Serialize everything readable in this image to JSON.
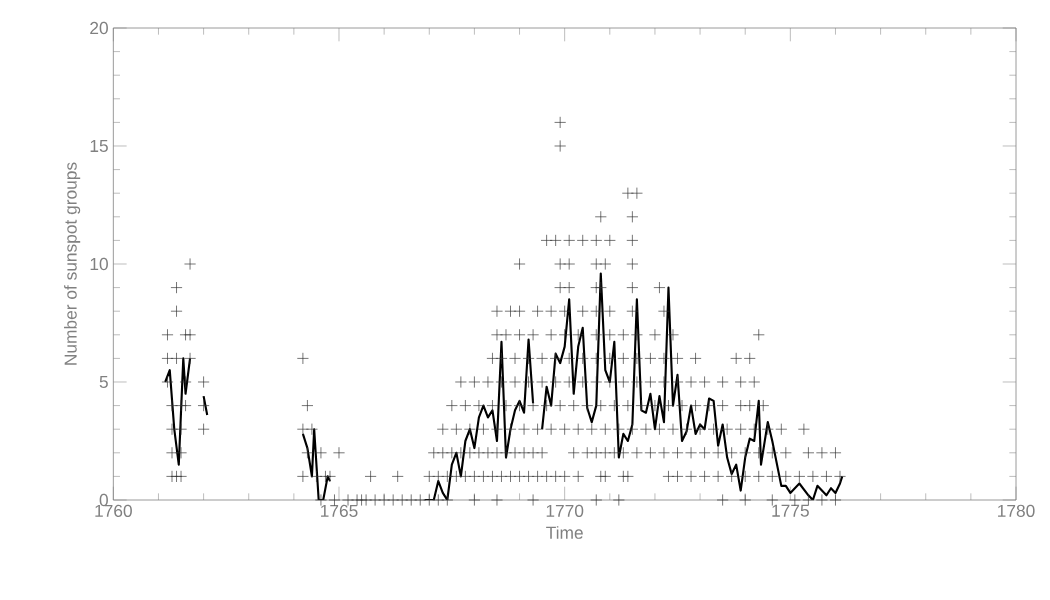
{
  "chart_data": {
    "type": "scatter",
    "xlabel": "Time",
    "ylabel": "Number of sunspot groups",
    "xlim": [
      1760,
      1780
    ],
    "ylim": [
      0,
      20
    ],
    "xticks": [
      1760,
      1765,
      1770,
      1775,
      1780
    ],
    "yticks": [
      0,
      5,
      10,
      15,
      20
    ],
    "grid": false,
    "series": [
      {
        "marker": "cross",
        "color": "#303030",
        "x": [
          1761.2,
          1761.2,
          1761.2,
          1761.3,
          1761.3,
          1761.3,
          1761.3,
          1761.4,
          1761.4,
          1761.4,
          1761.4,
          1761.5,
          1761.5,
          1761.5,
          1761.5,
          1761.6,
          1761.6,
          1761.6,
          1761.7,
          1761.7,
          1761.7,
          1762.0,
          1762.0,
          1762.0,
          1764.2,
          1764.3,
          1764.2,
          1764.3,
          1764.2,
          1764.4,
          1764.5,
          1764.6,
          1764.7,
          1764.8,
          1765.0,
          1764.6,
          1764.9,
          1765.2,
          1765.4,
          1765.5,
          1765.6,
          1765.8,
          1766.0,
          1766.2,
          1766.4,
          1766.6,
          1766.8,
          1767.0,
          1767.2,
          1767.4,
          1768.0,
          1768.5,
          1769.3,
          1770.7,
          1771.2,
          1773.5,
          1774.0,
          1774.6,
          1775.1,
          1775.4,
          1775.7,
          1776.0,
          1765.7,
          1766.3,
          1767.0,
          1767.2,
          1767.4,
          1767.6,
          1767.8,
          1768.0,
          1768.2,
          1768.4,
          1768.6,
          1768.8,
          1769.0,
          1769.2,
          1769.4,
          1769.6,
          1769.8,
          1770.0,
          1770.3,
          1770.8,
          1770.9,
          1771.3,
          1771.4,
          1772.3,
          1772.5,
          1772.8,
          1773.1,
          1773.4,
          1773.7,
          1774.0,
          1774.3,
          1774.6,
          1774.9,
          1775.2,
          1775.5,
          1775.8,
          1776.1,
          1767.1,
          1767.3,
          1767.5,
          1767.7,
          1767.9,
          1768.1,
          1768.3,
          1768.5,
          1768.7,
          1768.9,
          1769.1,
          1769.3,
          1769.5,
          1770.2,
          1770.5,
          1770.7,
          1770.9,
          1771.1,
          1771.3,
          1771.6,
          1771.9,
          1772.2,
          1772.5,
          1772.8,
          1773.1,
          1773.4,
          1773.7,
          1774.0,
          1774.3,
          1774.6,
          1774.9,
          1775.4,
          1775.7,
          1776.0,
          1767.3,
          1767.6,
          1767.9,
          1768.2,
          1768.5,
          1768.8,
          1769.1,
          1769.4,
          1769.7,
          1770.0,
          1770.3,
          1770.6,
          1770.9,
          1771.2,
          1771.5,
          1771.8,
          1772.1,
          1772.4,
          1772.7,
          1773.0,
          1773.3,
          1773.6,
          1773.9,
          1774.2,
          1774.5,
          1774.8,
          1775.3,
          1767.5,
          1767.8,
          1768.1,
          1768.4,
          1768.7,
          1769.0,
          1769.3,
          1769.6,
          1769.9,
          1770.2,
          1770.5,
          1770.8,
          1771.1,
          1771.4,
          1771.7,
          1772.0,
          1772.3,
          1772.6,
          1772.9,
          1773.2,
          1773.5,
          1773.9,
          1774.1,
          1774.4,
          1767.7,
          1768.0,
          1768.3,
          1768.6,
          1768.9,
          1769.2,
          1769.5,
          1769.8,
          1770.1,
          1770.4,
          1770.7,
          1771.0,
          1771.3,
          1771.6,
          1771.9,
          1772.2,
          1772.5,
          1772.8,
          1773.1,
          1773.5,
          1773.9,
          1774.2,
          1768.4,
          1768.6,
          1768.9,
          1769.2,
          1769.5,
          1769.8,
          1770.1,
          1770.4,
          1770.7,
          1771.0,
          1771.3,
          1771.6,
          1771.9,
          1772.2,
          1772.5,
          1772.9,
          1773.8,
          1774.1,
          1768.5,
          1768.7,
          1769.0,
          1769.3,
          1769.7,
          1770.0,
          1770.3,
          1770.7,
          1771.0,
          1771.3,
          1771.6,
          1772.0,
          1772.4,
          1774.3,
          1768.5,
          1768.8,
          1769.0,
          1769.4,
          1769.7,
          1770.0,
          1770.4,
          1770.7,
          1771.0,
          1771.5,
          1772.2,
          1769.9,
          1770.1,
          1770.7,
          1770.8,
          1771.5,
          1772.1,
          1769.0,
          1769.9,
          1770.1,
          1770.7,
          1770.9,
          1771.5,
          1769.6,
          1769.8,
          1770.1,
          1770.4,
          1770.7,
          1771.0,
          1771.5,
          1770.8,
          1771.5,
          1771.4,
          1771.6,
          1769.9,
          1769.9
        ],
        "values": [
          5,
          6,
          7,
          1,
          2,
          3,
          4,
          6,
          9,
          8,
          1,
          1,
          4,
          3,
          2,
          7,
          5,
          4,
          6,
          10,
          7,
          5,
          4,
          3,
          6,
          4,
          3,
          2,
          1,
          3,
          1,
          2,
          1,
          1,
          2,
          0,
          0,
          0,
          0,
          0,
          0,
          0,
          0,
          0,
          0,
          0,
          0,
          0,
          0,
          0,
          0,
          0,
          0,
          0,
          0,
          0,
          0,
          0,
          0,
          0,
          0,
          0,
          1,
          1,
          1,
          1,
          1,
          1,
          1,
          1,
          1,
          1,
          1,
          1,
          1,
          1,
          1,
          1,
          1,
          1,
          1,
          1,
          1,
          1,
          1,
          1,
          1,
          1,
          1,
          1,
          1,
          1,
          1,
          1,
          1,
          1,
          1,
          1,
          1,
          2,
          2,
          2,
          2,
          2,
          2,
          2,
          2,
          2,
          2,
          2,
          2,
          2,
          2,
          2,
          2,
          2,
          2,
          2,
          2,
          2,
          2,
          2,
          2,
          2,
          2,
          2,
          2,
          2,
          2,
          2,
          2,
          2,
          2,
          3,
          3,
          3,
          3,
          3,
          3,
          3,
          3,
          3,
          3,
          3,
          3,
          3,
          3,
          3,
          3,
          3,
          3,
          3,
          3,
          3,
          3,
          3,
          3,
          3,
          3,
          3,
          4,
          4,
          4,
          4,
          4,
          4,
          4,
          4,
          4,
          4,
          4,
          4,
          4,
          4,
          4,
          4,
          4,
          4,
          4,
          4,
          4,
          4,
          4,
          4,
          5,
          5,
          5,
          5,
          5,
          5,
          5,
          5,
          5,
          5,
          5,
          5,
          5,
          5,
          5,
          5,
          5,
          5,
          5,
          5,
          5,
          5,
          6,
          6,
          6,
          6,
          6,
          6,
          6,
          6,
          6,
          6,
          6,
          6,
          6,
          6,
          6,
          6,
          6,
          6,
          7,
          7,
          7,
          7,
          7,
          7,
          7,
          7,
          7,
          7,
          7,
          7,
          7,
          7,
          8,
          8,
          8,
          8,
          8,
          8,
          8,
          8,
          8,
          8,
          8,
          9,
          9,
          9,
          9,
          9,
          9,
          10,
          10,
          10,
          10,
          10,
          10,
          11,
          11,
          11,
          11,
          11,
          11,
          11,
          12,
          12,
          13,
          13,
          15,
          16
        ]
      },
      {
        "type": "line",
        "marker": "none",
        "line_style": "solid",
        "color": "#000000",
        "x": [
          1761.15,
          1761.25,
          1761.35,
          1761.45,
          1761.55,
          1761.6,
          1761.7,
          1761.85,
          1762.0,
          1762.08,
          1763.0,
          1764.2,
          1764.3,
          1764.4,
          1764.45,
          1764.55,
          1764.65,
          1764.75,
          1764.8,
          1765.5,
          1766.9,
          1767.1,
          1767.2,
          1767.3,
          1767.4,
          1767.5,
          1767.6,
          1767.7,
          1767.8,
          1767.9,
          1768.0,
          1768.1,
          1768.2,
          1768.3,
          1768.4,
          1768.5,
          1768.6,
          1768.7,
          1768.8,
          1768.9,
          1769.0,
          1769.1,
          1769.2,
          1769.3,
          1769.4,
          1769.5,
          1769.6,
          1769.7,
          1769.8,
          1769.9,
          1770.0,
          1770.1,
          1770.2,
          1770.3,
          1770.4,
          1770.5,
          1770.6,
          1770.7,
          1770.8,
          1770.9,
          1771.0,
          1771.1,
          1771.2,
          1771.3,
          1771.4,
          1771.5,
          1771.6,
          1771.7,
          1771.8,
          1771.9,
          1772.0,
          1772.1,
          1772.2,
          1772.3,
          1772.4,
          1772.5,
          1772.6,
          1772.7,
          1772.8,
          1772.9,
          1773.0,
          1773.1,
          1773.2,
          1773.3,
          1773.4,
          1773.5,
          1773.6,
          1773.7,
          1773.8,
          1773.9,
          1774.0,
          1774.1,
          1774.2,
          1774.3,
          1774.35,
          1774.5,
          1774.6,
          1774.8,
          1774.9,
          1775.0,
          1775.2,
          1775.4,
          1775.5,
          1775.6,
          1775.7,
          1775.8,
          1775.9,
          1776.0,
          1776.1,
          1776.15
        ],
        "values": [
          5,
          5.5,
          3,
          1.5,
          6,
          4.5,
          6,
          null,
          4.4,
          3.6,
          null,
          2.8,
          2.2,
          1,
          3,
          0,
          0,
          1,
          0.8,
          null,
          0,
          0,
          0.8,
          0.3,
          0,
          1.5,
          2,
          1,
          2.5,
          3,
          2.2,
          3.5,
          4,
          3.5,
          3.8,
          2.5,
          6.7,
          1.8,
          3,
          3.8,
          4.2,
          3.7,
          6.8,
          4.1,
          null,
          3,
          4.8,
          4,
          6.2,
          5.8,
          6.5,
          8.5,
          4.5,
          6.5,
          7.3,
          3.9,
          3.3,
          4,
          9.6,
          5.5,
          5,
          6.7,
          1.8,
          2.8,
          2.5,
          3.2,
          8.5,
          3.8,
          3.7,
          4.5,
          3,
          4.4,
          3.3,
          9,
          4,
          5.3,
          2.5,
          2.9,
          4,
          2.8,
          3.2,
          3,
          4.3,
          4.2,
          2.3,
          3.2,
          1.8,
          1.1,
          1.5,
          0.4,
          1.8,
          2.6,
          2.5,
          4.2,
          1.5,
          3.3,
          2.5,
          0.6,
          0.6,
          0.3,
          0.7,
          0.2,
          0,
          0.6,
          0.4,
          0.2,
          0.5,
          0.3,
          0.7,
          1
        ]
      }
    ]
  }
}
